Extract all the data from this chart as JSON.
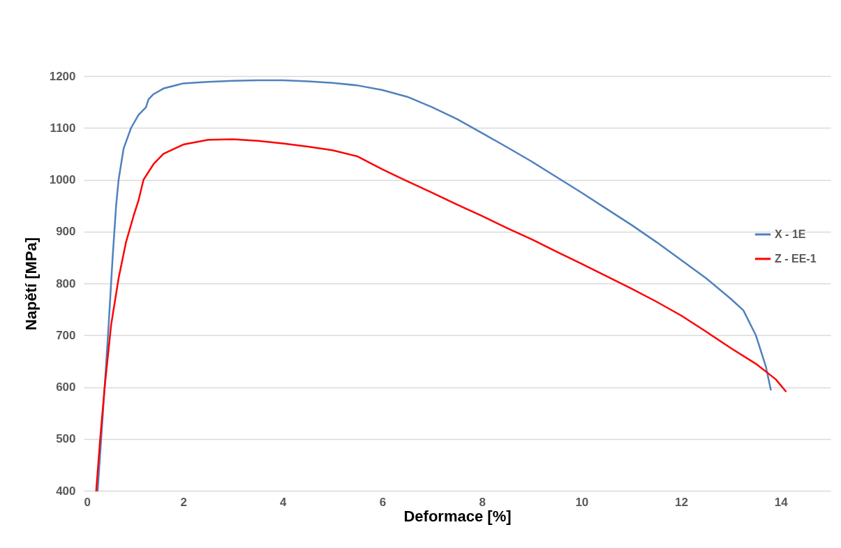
{
  "chart_data": {
    "type": "line",
    "xlabel": "Deformace [%]",
    "ylabel": "Napětí [MPa]",
    "xlim": [
      0,
      15
    ],
    "xticks": [
      0,
      2,
      4,
      6,
      8,
      10,
      12,
      14
    ],
    "ylim": [
      400,
      1200
    ],
    "yticks": [
      400,
      500,
      600,
      700,
      800,
      900,
      1000,
      1100,
      1200
    ],
    "grid": "y",
    "legend": "right",
    "marker": "none",
    "line_style": "solid",
    "series": [
      {
        "name": "X - 1E",
        "color": "#4f81bd",
        "x": [
          0.28,
          0.35,
          0.42,
          0.5,
          0.58,
          0.65,
          0.7,
          0.8,
          0.95,
          1.1,
          1.25,
          1.3,
          1.4,
          1.6,
          2,
          2.5,
          3,
          3.5,
          4,
          4.5,
          5,
          5.5,
          6,
          6.5,
          7,
          7.5,
          8,
          8.5,
          9,
          9.5,
          10,
          10.5,
          11,
          11.5,
          12,
          12.5,
          13,
          13.25,
          13.5,
          13.7,
          13.8
        ],
        "values": [
          400,
          500,
          600,
          720,
          850,
          950,
          1000,
          1060,
          1100,
          1125,
          1140,
          1155,
          1165,
          1176,
          1186,
          1189,
          1191,
          1192,
          1192,
          1190,
          1187,
          1182,
          1173,
          1160,
          1140,
          1117,
          1090,
          1063,
          1035,
          1005,
          975,
          944,
          913,
          880,
          845,
          810,
          770,
          748,
          700,
          640,
          595
        ]
      },
      {
        "name": "Z - EE-1",
        "color": "#ff0000",
        "x": [
          0.25,
          0.33,
          0.42,
          0.55,
          0.7,
          0.85,
          1.0,
          1.1,
          1.2,
          1.4,
          1.6,
          2,
          2.5,
          3,
          3.5,
          4,
          4.5,
          5,
          5.5,
          6,
          6.5,
          7,
          7.5,
          8,
          8.5,
          9,
          9.5,
          10,
          10.5,
          11,
          11.5,
          12,
          12.5,
          13,
          13.5,
          13.9,
          14.1
        ],
        "values": [
          400,
          500,
          600,
          720,
          810,
          880,
          930,
          960,
          1000,
          1030,
          1050,
          1068,
          1077,
          1078,
          1075,
          1070,
          1064,
          1057,
          1045,
          1020,
          997,
          975,
          952,
          930,
          907,
          885,
          861,
          838,
          814,
          790,
          765,
          738,
          707,
          675,
          645,
          615,
          592
        ]
      }
    ]
  }
}
